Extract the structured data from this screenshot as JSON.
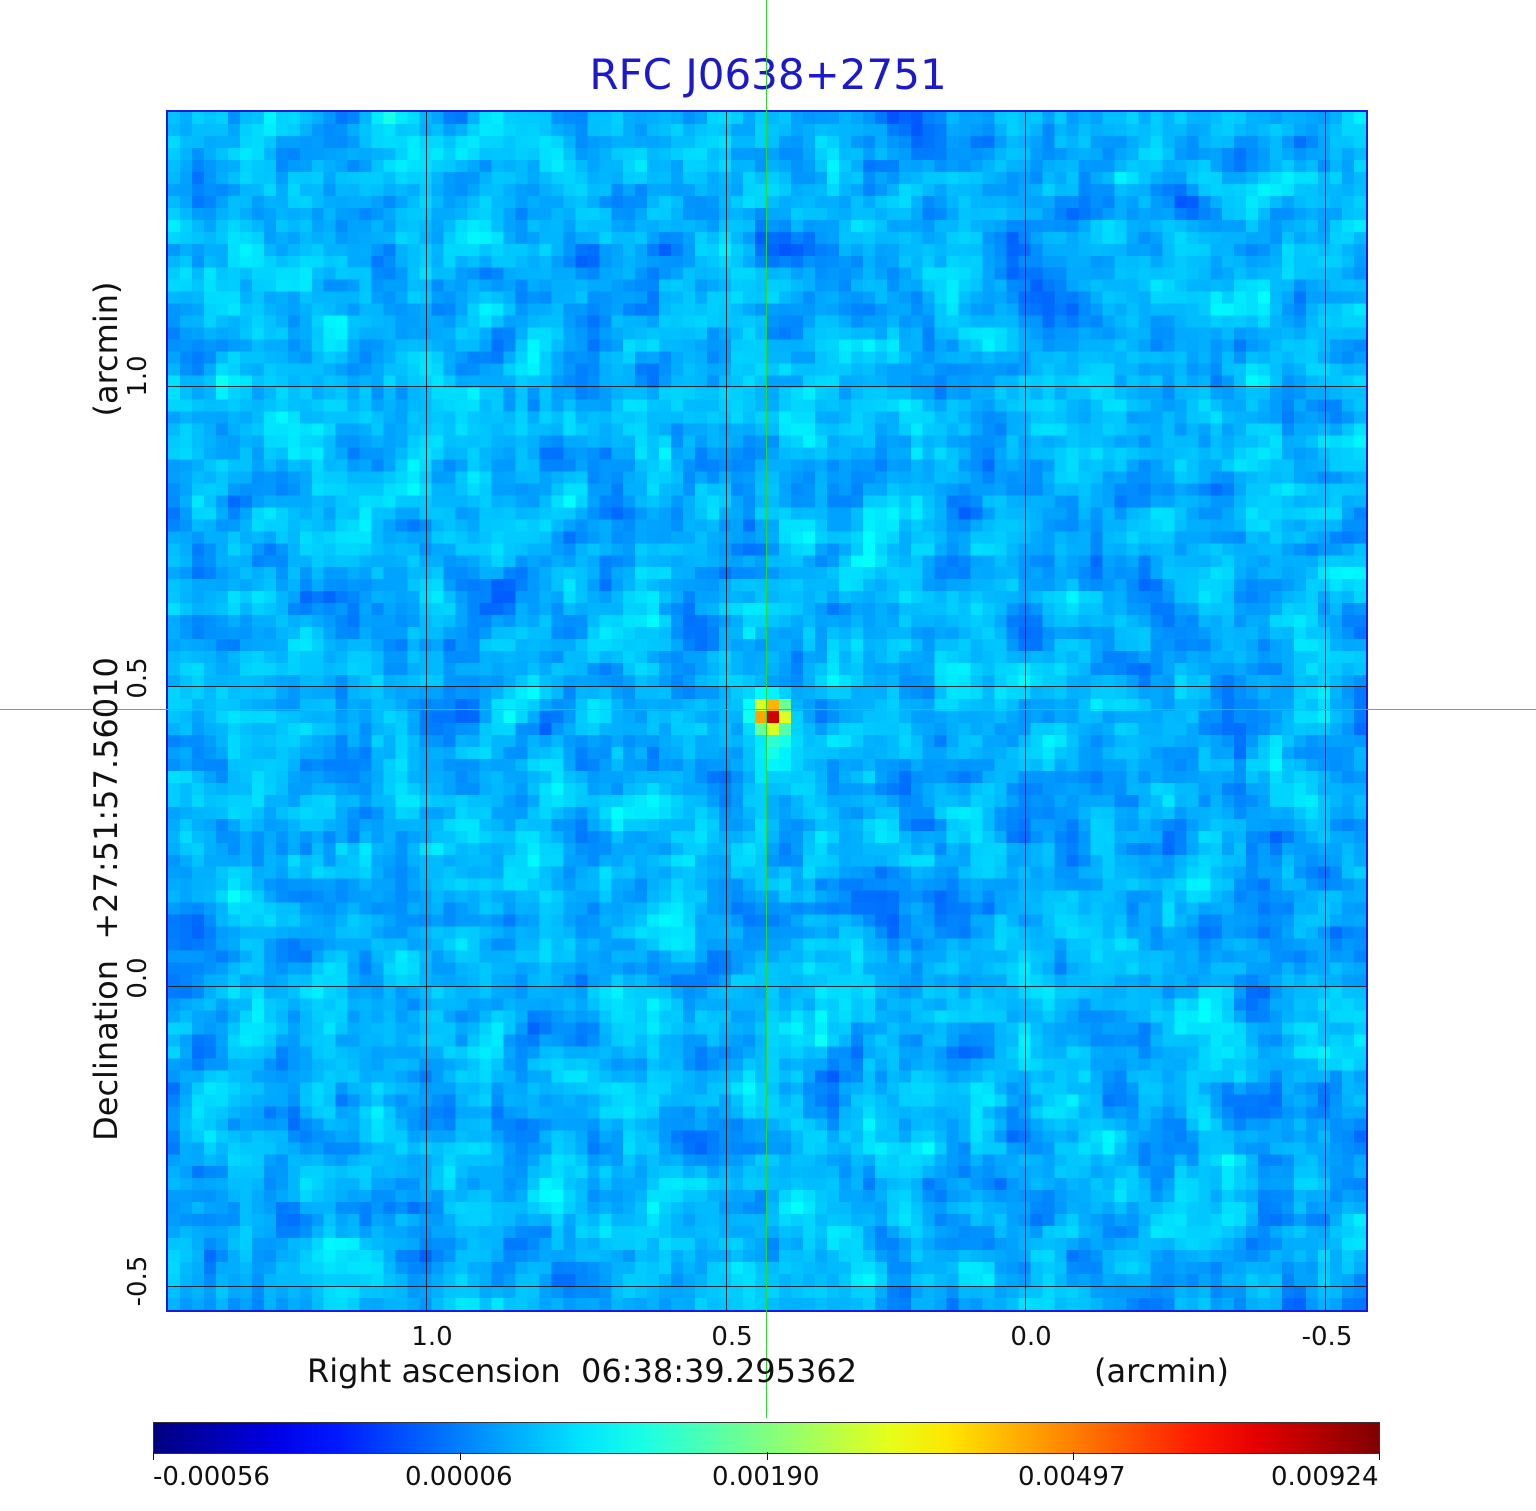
{
  "title": "RFC J0638+2751",
  "x_axis": {
    "label": "Right ascension  06:38:39.295362",
    "unit": "(arcmin)",
    "ticks": [
      "1.0",
      "0.5",
      "0.0",
      "-0.5"
    ]
  },
  "y_axis": {
    "label": "Declination  +27:51:57.56010",
    "unit": "(arcmin)",
    "ticks": [
      "1.0",
      "0.5",
      "0.0",
      "-0.5"
    ]
  },
  "colorbar": {
    "colormap": "jet",
    "ticks": [
      "-0.00056",
      "0.00006",
      "0.00190",
      "0.00497",
      "0.00924"
    ]
  },
  "colors": {
    "title": "#1a1acc",
    "frame": "#1a1ad8",
    "crosshair": "#2bd92b",
    "grid": "#111111"
  }
}
